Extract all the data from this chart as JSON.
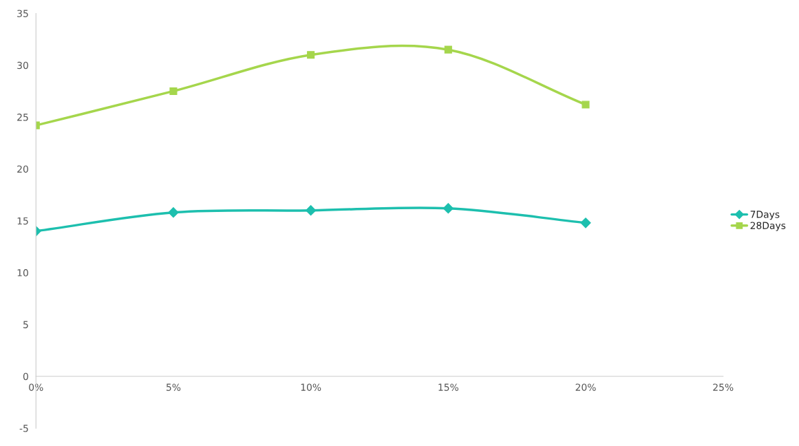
{
  "chart_data": {
    "type": "line",
    "x": [
      0,
      5,
      10,
      15,
      20
    ],
    "series": [
      {
        "name": "7Days",
        "color": "#1dbfae",
        "marker": "diamond",
        "values": [
          14.0,
          15.8,
          16.0,
          16.2,
          14.8
        ]
      },
      {
        "name": "28Days",
        "color": "#a5d64c",
        "marker": "square",
        "values": [
          24.2,
          27.5,
          31.0,
          31.5,
          26.2
        ]
      }
    ],
    "xlim": [
      0,
      25
    ],
    "xticks": [
      {
        "value": 0,
        "label": "0%"
      },
      {
        "value": 5,
        "label": "5%"
      },
      {
        "value": 10,
        "label": "10%"
      },
      {
        "value": 15,
        "label": "15%"
      },
      {
        "value": 20,
        "label": "20%"
      },
      {
        "value": 25,
        "label": "25%"
      }
    ],
    "ylim": [
      -5,
      35
    ],
    "yticks": [
      -5,
      0,
      5,
      10,
      15,
      20,
      25,
      30,
      35
    ],
    "grid": false,
    "legend": "right",
    "line_style": "solid"
  }
}
